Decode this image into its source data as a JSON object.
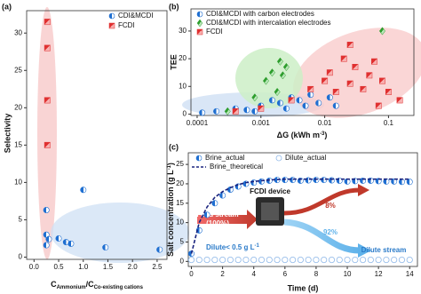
{
  "chart_data": [
    {
      "type": "scatter",
      "panel_label": "(a)",
      "y_label": "Selectivity",
      "x_label": [
        "C",
        "Ammonium",
        "/C",
        "Co-existing cations"
      ],
      "xlim": [
        -0.15,
        2.7
      ],
      "ylim": [
        -0.3,
        33
      ],
      "xticks": [
        {
          "value": 0,
          "label": "0.0"
        },
        {
          "value": 0.5,
          "label": "0.5"
        },
        {
          "value": 1,
          "label": "1.0"
        },
        {
          "value": 1.5,
          "label": "1.5"
        },
        {
          "value": 2,
          "label": "2.0"
        },
        {
          "value": 2.5,
          "label": "2.5"
        }
      ],
      "yticks": [
        0,
        5,
        10,
        15,
        20,
        25,
        30
      ],
      "legend": "upper right",
      "series": [
        {
          "name": "CDI&MCDI",
          "color": "#1f6fd1",
          "marker": "circle",
          "x": [
            0.25,
            0.25,
            0.25,
            0.3,
            0.5,
            0.65,
            0.75,
            1.0,
            1.45,
            2.55
          ],
          "values": [
            6.3,
            3.0,
            1.6,
            2.4,
            2.5,
            2.0,
            1.8,
            9.0,
            1.3,
            1.0
          ]
        },
        {
          "name": "FCDI",
          "color": "#e03030",
          "marker": "square",
          "x": [
            0.27,
            0.27,
            0.27,
            0.27
          ],
          "values": [
            31.5,
            28,
            21,
            15
          ]
        }
      ]
    },
    {
      "type": "scatter",
      "panel_label": "(b)",
      "y_label": "TEE",
      "x_label": [
        "ΔG (kWh m",
        "-3",
        ")"
      ],
      "xscale": "log",
      "xlim": [
        8e-05,
        0.25
      ],
      "ylim": [
        -0.5,
        38
      ],
      "xticks": [
        0.0001,
        0.001,
        0.01,
        0.1
      ],
      "yticks": [
        0,
        10,
        20,
        30
      ],
      "legend": "upper left",
      "series": [
        {
          "name": "CDI&MCDI with carbon electrodes",
          "color": "#1f6fd1",
          "marker": "circle",
          "x": [
            0.00012,
            0.0002,
            0.0004,
            0.0006,
            0.0008,
            0.001,
            0.0015,
            0.002,
            0.0025,
            0.003,
            0.004,
            0.005,
            0.006,
            0.008,
            0.012,
            0.015
          ],
          "values": [
            0.5,
            1,
            2,
            1.5,
            1,
            3,
            5,
            4,
            2,
            6,
            5,
            3,
            7,
            4,
            6,
            3
          ]
        },
        {
          "name": "CDI&MCDI with intercalation electrodes",
          "color": "#2e9e2e",
          "marker": "diamond",
          "x": [
            0.0003,
            0.0008,
            0.0012,
            0.0015,
            0.0018,
            0.002,
            0.0022,
            0.0025,
            0.08
          ],
          "values": [
            1,
            6,
            12,
            15,
            8,
            19,
            14,
            17,
            30
          ]
        },
        {
          "name": "FCDI",
          "color": "#e03030",
          "marker": "square",
          "x": [
            0.0004,
            0.001,
            0.003,
            0.006,
            0.01,
            0.012,
            0.015,
            0.02,
            0.025,
            0.025,
            0.03,
            0.04,
            0.05,
            0.06,
            0.07,
            0.08,
            0.1,
            0.15
          ],
          "values": [
            1,
            2,
            5,
            9,
            12,
            15,
            8,
            20,
            11,
            25,
            17,
            9,
            14,
            19,
            3,
            12,
            8,
            5
          ]
        }
      ]
    },
    {
      "type": "line",
      "panel_label": "(c)",
      "y_label": [
        "Salt concentration (g L",
        "-1",
        ")"
      ],
      "x_label": "Time (d)",
      "xlim": [
        -0.2,
        14.5
      ],
      "ylim": [
        -1.3,
        28
      ],
      "xticks": [
        0,
        2,
        4,
        6,
        8,
        10,
        12,
        14
      ],
      "yticks": [
        0,
        5,
        10,
        15,
        20,
        25
      ],
      "legend": "top",
      "x": [
        0,
        0.5,
        1,
        1.5,
        2,
        2.5,
        3,
        3.5,
        4,
        4.5,
        5,
        5.5,
        6,
        6.5,
        7,
        7.5,
        8,
        8.5,
        9,
        9.5,
        10,
        10.5,
        11,
        11.5,
        12,
        12.5,
        13,
        13.5,
        14
      ],
      "series": [
        {
          "name": "Brine_actual",
          "color": "#1f6fd1",
          "marker": "circle",
          "values": [
            2,
            8,
            12,
            15,
            17,
            18.5,
            19.3,
            20,
            20.3,
            20.6,
            20.8,
            21,
            21,
            21,
            20.8,
            20.9,
            21,
            21,
            20.9,
            20.8,
            20.6,
            20.7,
            20.8,
            20.8,
            20.7,
            20.6,
            20.6,
            20.5,
            20.5
          ]
        },
        {
          "name": "Dilute_actual",
          "color": "#8fb8e8",
          "marker": "open-circle",
          "values": [
            0.4,
            0.4,
            0.4,
            0.4,
            0.4,
            0.4,
            0.4,
            0.4,
            0.4,
            0.4,
            0.4,
            0.4,
            0.4,
            0.4,
            0.4,
            0.4,
            0.4,
            0.4,
            0.4,
            0.4,
            0.4,
            0.4,
            0.4,
            0.4,
            0.4,
            0.4,
            0.4,
            0.4,
            0.4
          ]
        },
        {
          "name": "Brine_theoretical",
          "color": "#1a237e",
          "marker": "dashed-line",
          "values": [
            2,
            10,
            14,
            16.5,
            18,
            19,
            19.8,
            20.3,
            20.6,
            20.8,
            21,
            21.1,
            21.2,
            21.2,
            21.2,
            21.2,
            21.2,
            21.2,
            21.2,
            21.2,
            21.2,
            21.2,
            21.2,
            21.2,
            21.2,
            21.2,
            21.2,
            21.2,
            21.2
          ]
        }
      ],
      "device_label": "FCDI device",
      "feed_label": [
        "Feed stream",
        "(100%)"
      ],
      "brine_label": "Brine stream",
      "brine_pct": "8%",
      "dilute_pct": "92%",
      "dilute_label": "Dilute stream",
      "dilute_note": [
        "Dilute< 0.5 g L",
        "-1"
      ]
    }
  ]
}
